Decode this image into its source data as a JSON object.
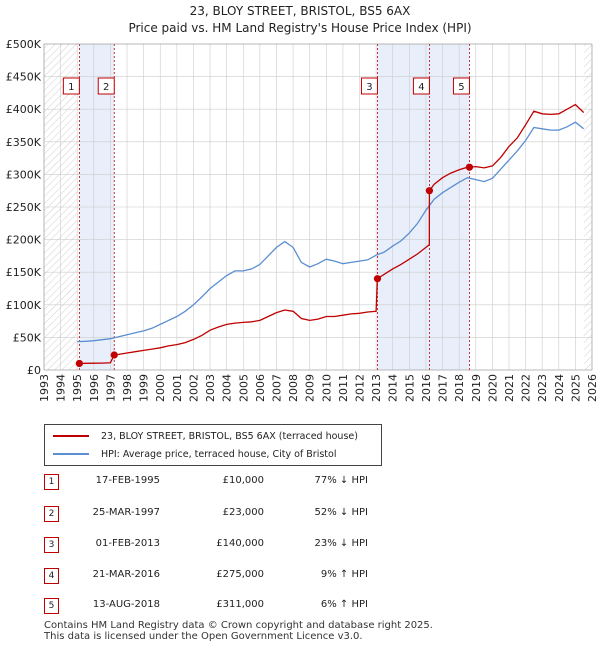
{
  "title": {
    "line1": "23, BLOY STREET, BRISTOL, BS5 6AX",
    "line2": "Price paid vs. HM Land Registry's House Price Index (HPI)"
  },
  "colors": {
    "price_line": "#c00000",
    "hpi_line": "#5b8ed1",
    "shade": "#e8eefa",
    "marker_line": "#c00000",
    "grid": "#cccccc"
  },
  "legend": {
    "price_label": "23, BLOY STREET, BRISTOL, BS5 6AX (terraced house)",
    "hpi_label": "HPI: Average price, terraced house, City of Bristol"
  },
  "sales": [
    {
      "num": "1",
      "date": "17-FEB-1995",
      "price": "£10,000",
      "hpi": "77% ↓ HPI"
    },
    {
      "num": "2",
      "date": "25-MAR-1997",
      "price": "£23,000",
      "hpi": "52% ↓ HPI"
    },
    {
      "num": "3",
      "date": "01-FEB-2013",
      "price": "£140,000",
      "hpi": "23% ↓ HPI"
    },
    {
      "num": "4",
      "date": "21-MAR-2016",
      "price": "£275,000",
      "hpi": "9% ↑ HPI"
    },
    {
      "num": "5",
      "date": "13-AUG-2018",
      "price": "£311,000",
      "hpi": "6% ↑ HPI"
    }
  ],
  "footer": {
    "line1": "Contains HM Land Registry data © Crown copyright and database right 2025.",
    "line2": "This data is licensed under the Open Government Licence v3.0."
  },
  "chart_data": {
    "type": "line",
    "title": "23, BLOY STREET, BRISTOL, BS5 6AX — Price paid vs. HM Land Registry's House Price Index (HPI)",
    "xlabel": "",
    "ylabel": "",
    "xlim": [
      1993,
      2026
    ],
    "ylim": [
      0,
      500000
    ],
    "x_ticks": [
      1993,
      1994,
      1995,
      1996,
      1997,
      1998,
      1999,
      2000,
      2001,
      2002,
      2003,
      2004,
      2005,
      2006,
      2007,
      2008,
      2009,
      2010,
      2011,
      2012,
      2013,
      2014,
      2015,
      2016,
      2017,
      2018,
      2019,
      2020,
      2021,
      2022,
      2023,
      2024,
      2025,
      2026
    ],
    "y_ticks": [
      {
        "value": 0,
        "label": "£0"
      },
      {
        "value": 50000,
        "label": "£50K"
      },
      {
        "value": 100000,
        "label": "£100K"
      },
      {
        "value": 150000,
        "label": "£150K"
      },
      {
        "value": 200000,
        "label": "£200K"
      },
      {
        "value": 250000,
        "label": "£250K"
      },
      {
        "value": 300000,
        "label": "£300K"
      },
      {
        "value": 350000,
        "label": "£350K"
      },
      {
        "value": 400000,
        "label": "£400K"
      },
      {
        "value": 450000,
        "label": "£450K"
      },
      {
        "value": 500000,
        "label": "£500K"
      }
    ],
    "grid": true,
    "shaded_ranges": [
      [
        1995.13,
        1997.23
      ],
      [
        2013.08,
        2018.62
      ]
    ],
    "data_start": 1995.0,
    "data_end": 2025.5,
    "series": [
      {
        "name": "HPI: Average price, terraced house, City of Bristol",
        "x": [
          1995.0,
          1995.5,
          1996.0,
          1996.5,
          1997.0,
          1997.5,
          1998.0,
          1998.5,
          1999.0,
          1999.5,
          2000.0,
          2000.5,
          2001.0,
          2001.5,
          2002.0,
          2002.5,
          2003.0,
          2003.5,
          2004.0,
          2004.5,
          2005.0,
          2005.5,
          2006.0,
          2006.5,
          2007.0,
          2007.5,
          2008.0,
          2008.5,
          2009.0,
          2009.5,
          2010.0,
          2010.5,
          2011.0,
          2011.5,
          2012.0,
          2012.5,
          2013.0,
          2013.5,
          2014.0,
          2014.5,
          2015.0,
          2015.5,
          2016.0,
          2016.5,
          2017.0,
          2017.5,
          2018.0,
          2018.5,
          2019.0,
          2019.5,
          2020.0,
          2020.5,
          2021.0,
          2021.5,
          2022.0,
          2022.5,
          2023.0,
          2023.5,
          2024.0,
          2024.5,
          2025.0,
          2025.5
        ],
        "values": [
          43500,
          44000,
          45000,
          46500,
          48000,
          51000,
          54000,
          57000,
          60000,
          64000,
          70000,
          76000,
          82000,
          90000,
          100000,
          112000,
          125000,
          135000,
          145000,
          152000,
          152000,
          155000,
          162000,
          175000,
          188000,
          197000,
          188000,
          165000,
          158000,
          163000,
          170000,
          167000,
          163000,
          165000,
          167000,
          169000,
          176000,
          181000,
          190000,
          198000,
          210000,
          225000,
          245000,
          262000,
          272000,
          280000,
          288000,
          295000,
          292000,
          289000,
          294000,
          308000,
          322000,
          336000,
          352000,
          372000,
          370000,
          368000,
          368000,
          373000,
          380000,
          370000
        ]
      },
      {
        "name": "23, BLOY STREET, BRISTOL, BS5 6AX (terraced house)",
        "x": [
          1995.0,
          1995.13,
          1995.5,
          1996.0,
          1996.5,
          1997.0,
          1997.23,
          1997.5,
          1998.0,
          1998.5,
          1999.0,
          1999.5,
          2000.0,
          2000.5,
          2001.0,
          2001.5,
          2002.0,
          2002.5,
          2003.0,
          2003.5,
          2004.0,
          2004.5,
          2005.0,
          2005.5,
          2006.0,
          2006.5,
          2007.0,
          2007.5,
          2008.0,
          2008.5,
          2009.0,
          2009.5,
          2010.0,
          2010.5,
          2011.0,
          2011.5,
          2012.0,
          2012.5,
          2013.0,
          2013.08,
          2013.5,
          2014.0,
          2014.5,
          2015.0,
          2015.5,
          2016.0,
          2016.2,
          2016.21,
          2016.5,
          2017.0,
          2017.5,
          2018.0,
          2018.5,
          2018.62,
          2019.0,
          2019.5,
          2020.0,
          2020.5,
          2021.0,
          2021.5,
          2022.0,
          2022.5,
          2023.0,
          2023.5,
          2024.0,
          2024.5,
          2025.0,
          2025.5
        ],
        "values": [
          9500,
          10000,
          10200,
          10400,
          10600,
          11000,
          23000,
          24000,
          26000,
          28000,
          30000,
          32000,
          34000,
          37000,
          39000,
          42000,
          47000,
          53000,
          61000,
          66000,
          70000,
          72000,
          73000,
          74000,
          76000,
          82000,
          88000,
          92000,
          90000,
          79000,
          76000,
          78000,
          82000,
          82000,
          84000,
          86000,
          87000,
          89000,
          90000,
          140000,
          147000,
          155000,
          162000,
          170000,
          178000,
          188000,
          192000,
          275000,
          285000,
          295000,
          302000,
          307000,
          311000,
          311000,
          312000,
          310000,
          313000,
          326000,
          343000,
          356000,
          376000,
          397000,
          393000,
          392000,
          393000,
          400000,
          407000,
          395000
        ]
      }
    ],
    "sale_points": [
      {
        "label": "1",
        "x": 1995.13,
        "y": 10000
      },
      {
        "label": "2",
        "x": 1997.23,
        "y": 23000
      },
      {
        "label": "3",
        "x": 2013.08,
        "y": 140000
      },
      {
        "label": "4",
        "x": 2016.21,
        "y": 275000
      },
      {
        "label": "5",
        "x": 2018.62,
        "y": 311000
      }
    ]
  }
}
